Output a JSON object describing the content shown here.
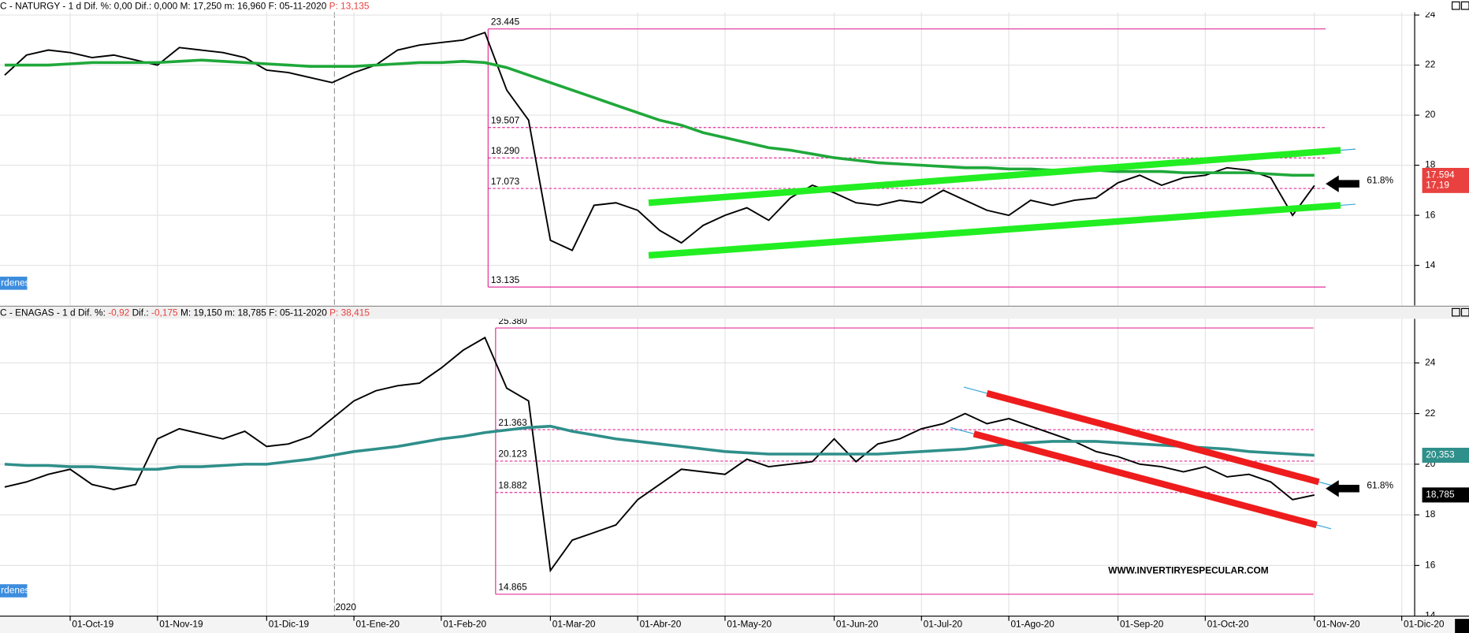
{
  "chart_data": [
    {
      "type": "line",
      "header": [
        {
          "text": "C - NATURGY -  1 d  Dif. %: 0,00  Dif.: 0,000  M: 17,250  m: 16,960  F: 05-11-2020",
          "color": "#000000"
        },
        {
          "text": "  P: 13,135",
          "color": "#e8413f"
        }
      ],
      "button": "rdenes",
      "ylim": [
        12.4,
        24.6
      ],
      "yticks": [
        14,
        16,
        18,
        20,
        22,
        24
      ],
      "series": [
        {
          "color": "#000000",
          "values": [
            21.6,
            22.4,
            22.6,
            22.5,
            22.3,
            22.4,
            22.2,
            22.0,
            22.7,
            22.6,
            22.5,
            22.3,
            21.8,
            21.7,
            21.5,
            21.3,
            21.7,
            22.0,
            22.6,
            22.8,
            22.9,
            23.0,
            23.3,
            21.0,
            19.8,
            15.0,
            14.6,
            16.4,
            16.5,
            16.2,
            15.4,
            14.9,
            15.6,
            16.0,
            16.3,
            15.8,
            16.7,
            17.2,
            16.9,
            16.5,
            16.4,
            16.6,
            16.5,
            17.0,
            16.6,
            16.2,
            16.0,
            16.6,
            16.4,
            16.6,
            16.7,
            17.3,
            17.6,
            17.2,
            17.5,
            17.6,
            17.9,
            17.8,
            17.5,
            16.0,
            17.19,
            null,
            null,
            null,
            null
          ]
        },
        {
          "color": "#1fa83a",
          "values": [
            22.0,
            22.0,
            22.0,
            22.05,
            22.1,
            22.1,
            22.1,
            22.1,
            22.15,
            22.2,
            22.15,
            22.1,
            22.05,
            22.0,
            21.95,
            21.95,
            21.95,
            22.0,
            22.05,
            22.1,
            22.1,
            22.15,
            22.1,
            21.9,
            21.6,
            21.3,
            21.0,
            20.7,
            20.4,
            20.1,
            19.8,
            19.6,
            19.3,
            19.1,
            18.9,
            18.7,
            18.6,
            18.45,
            18.3,
            18.2,
            18.1,
            18.05,
            18.0,
            17.95,
            17.9,
            17.9,
            17.85,
            17.85,
            17.8,
            17.8,
            17.8,
            17.75,
            17.75,
            17.75,
            17.7,
            17.7,
            17.7,
            17.7,
            17.65,
            17.6,
            17.6,
            null,
            null,
            null,
            null
          ]
        }
      ],
      "levels": [
        {
          "value": 23.445,
          "label": "23.445"
        },
        {
          "value": 19.507,
          "label": "19.507"
        },
        {
          "value": 18.29,
          "label": "18.290"
        },
        {
          "value": 17.073,
          "label": "17.073"
        },
        {
          "value": 13.135,
          "label": "13.135"
        }
      ],
      "trendlines": [
        {
          "color": "#22ee22",
          "x": [
            29.5,
            61.2
          ],
          "values": [
            16.5,
            18.6
          ]
        },
        {
          "color": "#22ee22",
          "x": [
            29.5,
            61.2
          ],
          "values": [
            14.4,
            16.4
          ]
        }
      ],
      "price_tags": [
        {
          "value": 17.594,
          "label": "17,594",
          "color": "#e8413f"
        },
        {
          "value": 17.19,
          "label": "17,19",
          "color": "#e8413f"
        }
      ],
      "annotation": "61.8%"
    },
    {
      "type": "line",
      "header": [
        {
          "text": "C - ENAGAS -  1 d  Dif. %: ",
          "color": "#000000"
        },
        {
          "text": "-0,92",
          "color": "#e8413f"
        },
        {
          "text": "  Dif.: ",
          "color": "#000000"
        },
        {
          "text": "-0,175",
          "color": "#e8413f"
        },
        {
          "text": "  M: 19,150  m: 18,785  F: 05-11-2020",
          "color": "#000000"
        },
        {
          "text": "  P: 38,415",
          "color": "#e8413f"
        }
      ],
      "button": "rdenes",
      "year_label": "2020",
      "watermark": "WWW.INVERTIRYESPECULAR.COM",
      "categories": [
        null,
        null,
        null,
        "01-Oct-19",
        null,
        null,
        null,
        "01-Nov-19",
        null,
        null,
        null,
        null,
        "01-Dic-19",
        null,
        null,
        null,
        "01-Ene-20",
        null,
        null,
        null,
        "01-Feb-20",
        null,
        null,
        null,
        null,
        "01-Mar-20",
        null,
        null,
        null,
        "01-Abr-20",
        null,
        null,
        null,
        "01-May-20",
        null,
        null,
        null,
        null,
        "01-Jun-20",
        null,
        null,
        null,
        "01-Jul-20",
        null,
        null,
        null,
        "01-Ago-20",
        null,
        null,
        null,
        null,
        "01-Sep-20",
        null,
        null,
        null,
        "01-Oct-20",
        null,
        null,
        null,
        null,
        "01-Nov-20",
        null,
        null,
        null,
        "01-Dic-20"
      ],
      "ylim": [
        14.0,
        25.75
      ],
      "yticks": [
        14,
        16,
        18,
        20,
        22,
        24
      ],
      "series": [
        {
          "color": "#000000",
          "values": [
            19.1,
            19.3,
            19.6,
            19.8,
            19.2,
            19.0,
            19.2,
            21.0,
            21.4,
            21.2,
            21.0,
            21.3,
            20.7,
            20.8,
            21.1,
            21.8,
            22.5,
            22.9,
            23.1,
            23.2,
            23.8,
            24.5,
            25.0,
            23.0,
            22.5,
            15.8,
            17.0,
            17.3,
            17.6,
            18.6,
            19.2,
            19.8,
            19.7,
            19.6,
            20.2,
            19.9,
            20.0,
            20.1,
            21.0,
            20.1,
            20.8,
            21.0,
            21.4,
            21.6,
            22.0,
            21.6,
            21.8,
            21.5,
            21.2,
            20.9,
            20.5,
            20.3,
            20.0,
            19.9,
            19.7,
            19.9,
            19.5,
            19.6,
            19.3,
            18.6,
            18.785,
            null,
            null,
            null,
            null
          ]
        },
        {
          "color": "#2f8f8a",
          "values": [
            20.0,
            19.95,
            19.95,
            19.9,
            19.9,
            19.85,
            19.8,
            19.8,
            19.9,
            19.9,
            19.95,
            20.0,
            20.0,
            20.1,
            20.2,
            20.35,
            20.5,
            20.6,
            20.7,
            20.85,
            21.0,
            21.1,
            21.25,
            21.35,
            21.45,
            21.5,
            21.3,
            21.15,
            21.0,
            20.9,
            20.8,
            20.7,
            20.6,
            20.5,
            20.45,
            20.4,
            20.4,
            20.4,
            20.4,
            20.4,
            20.4,
            20.45,
            20.5,
            20.55,
            20.6,
            20.7,
            20.8,
            20.85,
            20.9,
            20.9,
            20.9,
            20.85,
            20.8,
            20.75,
            20.7,
            20.65,
            20.6,
            20.5,
            20.45,
            20.4,
            20.353,
            null,
            null,
            null,
            null
          ]
        }
      ],
      "levels": [
        {
          "value": 25.38,
          "label": "25.380"
        },
        {
          "value": 21.363,
          "label": "21.363"
        },
        {
          "value": 20.123,
          "label": "20.123"
        },
        {
          "value": 18.882,
          "label": "18.882"
        },
        {
          "value": 14.865,
          "label": "14.865"
        }
      ],
      "trendlines": [
        {
          "color": "#ee1c1c",
          "x": [
            45.0,
            60.2
          ],
          "values": [
            22.8,
            19.3
          ]
        },
        {
          "color": "#ee1c1c",
          "x": [
            44.4,
            60.1
          ],
          "values": [
            21.2,
            17.6
          ]
        }
      ],
      "price_tags": [
        {
          "value": 20.353,
          "label": "20,353",
          "color": "#2f8f8a"
        },
        {
          "value": 18.785,
          "label": "18,785",
          "color": "#000000"
        }
      ],
      "annotation": "61.8%"
    }
  ]
}
